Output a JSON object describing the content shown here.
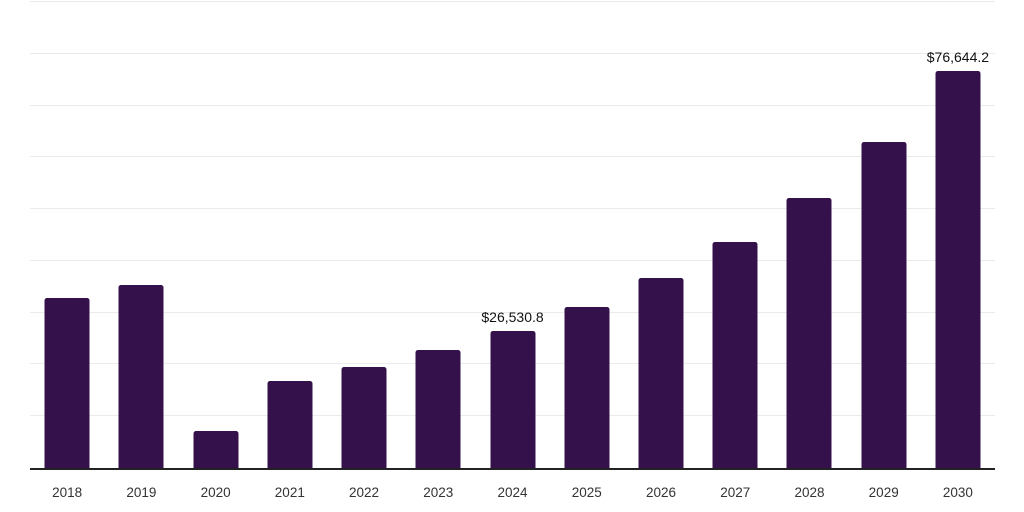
{
  "chart_data": {
    "type": "bar",
    "title": "",
    "xlabel": "",
    "ylabel": "",
    "categories": [
      "2018",
      "2019",
      "2020",
      "2021",
      "2022",
      "2023",
      "2024",
      "2025",
      "2026",
      "2027",
      "2028",
      "2029",
      "2030"
    ],
    "values": [
      32900,
      35400,
      7200,
      16900,
      19600,
      22700,
      26530.8,
      31100,
      36700,
      43600,
      52200,
      62900,
      76644.2
    ],
    "data_labels": [
      "",
      "",
      "",
      "",
      "",
      "",
      "$26,530.8",
      "",
      "",
      "",
      "",
      "",
      "$76,644.2"
    ],
    "ylim": [
      0,
      90000
    ],
    "gridline_interval": 10000,
    "grid": true,
    "legend": false,
    "y_axis_labels_visible": false,
    "colors": {
      "bar": "#35114C",
      "axis_line": "#222222",
      "gridline": "#ebebeb",
      "tick_label": "#333333",
      "data_label": "#111111"
    }
  }
}
